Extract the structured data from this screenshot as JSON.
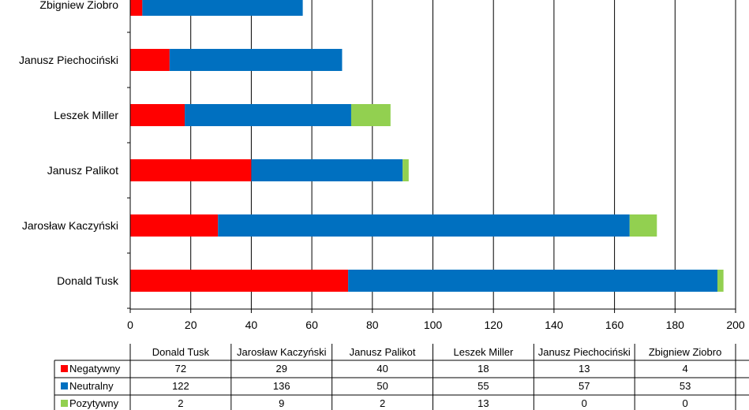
{
  "colors": {
    "Negatywny": "#ff0000",
    "Neutralny": "#0070c0",
    "Pozytywny": "#92d050"
  },
  "chart_data": {
    "type": "bar",
    "orientation": "horizontal",
    "stacked": true,
    "categories": [
      "Donald Tusk",
      "Jarosław Kaczyński",
      "Janusz Palikot",
      "Leszek Miller",
      "Janusz Piechociński",
      "Zbigniew Ziobro"
    ],
    "series": [
      {
        "name": "Negatywny",
        "values": [
          72,
          29,
          40,
          18,
          13,
          4
        ]
      },
      {
        "name": "Neutralny",
        "values": [
          122,
          136,
          50,
          55,
          57,
          53
        ]
      },
      {
        "name": "Pozytywny",
        "values": [
          2,
          9,
          2,
          13,
          0,
          0
        ]
      }
    ],
    "xlim": [
      0,
      200
    ],
    "xticks": [
      0,
      20,
      40,
      60,
      80,
      100,
      120,
      140,
      160,
      180,
      200
    ],
    "grid": "vertical",
    "legend": "data-table below chart"
  }
}
